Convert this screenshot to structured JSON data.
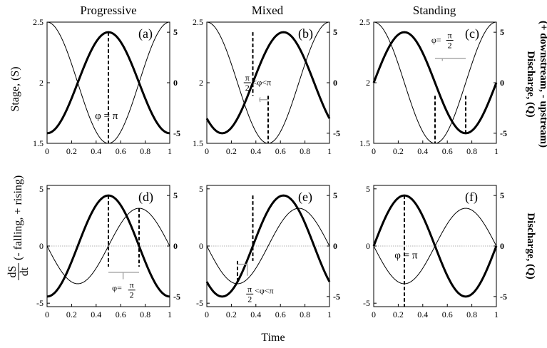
{
  "chart_data": {
    "type": "line",
    "title": "",
    "columns": [
      "Progressive",
      "Mixed",
      "Standing"
    ],
    "xlabel": "Time",
    "x_ticks": [
      "0",
      "0.2",
      "0.4",
      "0.6",
      "0.8",
      "1"
    ],
    "xlim": [
      0,
      1
    ],
    "top_row": {
      "ylabel_left": "Stage, (S)",
      "ylim_left": [
        1.5,
        2.5
      ],
      "yticks_left": [
        "1.5",
        "2",
        "2.5"
      ],
      "ylim_right": [
        -6,
        6
      ],
      "yticks_right": [
        "-5",
        "0",
        "5"
      ],
      "ylabel_right": [
        "Discharge, (Q)",
        "(+ downstream, - upstream)"
      ]
    },
    "bottom_row": {
      "ylabel_left_fraction": [
        "dS",
        "dt"
      ],
      "ylabel_left_text": "(- falling, + rising)",
      "ylim_left": [
        -5.3,
        5.3
      ],
      "yticks_left": [
        "-5",
        "0",
        "5"
      ],
      "ylim_right": [
        -6,
        6
      ],
      "yticks_right": [
        "-5",
        "0",
        "5"
      ],
      "ylabel_right": "Discharge, (Q)"
    },
    "panels": [
      {
        "label": "(a)",
        "row": "top",
        "col": 0,
        "series": [
          {
            "name": "Stage S",
            "style": "thin",
            "formula": "S = 2 + 0.5*cos(2*pi*t)"
          },
          {
            "name": "Discharge Q",
            "style": "thick",
            "formula": "Q = -5*cos(2*pi*t)"
          }
        ],
        "markers": [
          0.5
        ],
        "annotation": "φ = π"
      },
      {
        "label": "(b)",
        "row": "top",
        "col": 1,
        "series": [
          {
            "name": "Stage S",
            "style": "thin",
            "formula": "S = 2 + 0.5*cos(2*pi*t)"
          },
          {
            "name": "Discharge Q",
            "style": "thick",
            "formula": "Q = -5*cos(2*pi*(t - 0.125))"
          }
        ],
        "markers": [
          0.375,
          0.5
        ],
        "annotation": "π/2 < φ < π"
      },
      {
        "label": "(c)",
        "row": "top",
        "col": 2,
        "series": [
          {
            "name": "Stage S",
            "style": "thin",
            "formula": "S = 2 + 0.5*cos(2*pi*t)"
          },
          {
            "name": "Discharge Q",
            "style": "thick",
            "formula": "Q = 5*sin(2*pi*t)"
          }
        ],
        "markers": [
          0.5,
          0.75
        ],
        "annotation": "φ = π/2"
      },
      {
        "label": "(d)",
        "row": "bottom",
        "col": 0,
        "series": [
          {
            "name": "dS/dt",
            "style": "thin",
            "formula": "dS/dt = -3.3*sin(2*pi*t)"
          },
          {
            "name": "Discharge Q",
            "style": "thick",
            "formula": "Q = -5*cos(2*pi*t)"
          }
        ],
        "markers": [
          0.5,
          0.75
        ],
        "annotation": "φ = π/2"
      },
      {
        "label": "(e)",
        "row": "bottom",
        "col": 1,
        "series": [
          {
            "name": "dS/dt",
            "style": "thin",
            "formula": "dS/dt = -3.3*sin(2*pi*t)"
          },
          {
            "name": "Discharge Q",
            "style": "thick",
            "formula": "Q = -5*cos(2*pi*(t - 0.125))"
          }
        ],
        "markers": [
          0.25,
          0.375
        ],
        "annotation": "π/2 < φ < π"
      },
      {
        "label": "(f)",
        "row": "bottom",
        "col": 2,
        "series": [
          {
            "name": "dS/dt",
            "style": "thin",
            "formula": "dS/dt = -3.3*sin(2*pi*t)"
          },
          {
            "name": "Discharge Q",
            "style": "thick",
            "formula": "Q = 5*sin(2*pi*t)"
          }
        ],
        "markers": [
          0.25
        ],
        "annotation": "φ = π"
      }
    ],
    "symbols": {
      "phi": "φ",
      "pi": "π",
      "two": "2",
      "lt": "<"
    }
  }
}
